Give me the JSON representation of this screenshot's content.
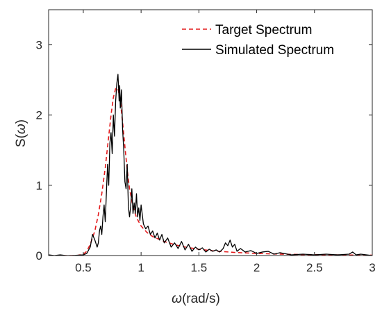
{
  "chart_data": {
    "type": "line",
    "xlabel_symbol": "ω",
    "xlabel_unit": "(rad/s)",
    "ylabel_prefix": "S(",
    "ylabel_symbol": "ω",
    "ylabel_suffix": ")",
    "xlim": [
      0.2,
      3.0
    ],
    "ylim": [
      0,
      3.5
    ],
    "xticks": [
      0.5,
      1,
      1.5,
      2,
      2.5,
      3
    ],
    "xtick_labels": [
      "0.5",
      "1",
      "1.5",
      "2",
      "2.5",
      "3"
    ],
    "yticks": [
      0,
      1,
      2,
      3
    ],
    "ytick_labels": [
      "0",
      "1",
      "2",
      "3"
    ],
    "grid": false,
    "legend_position": "top-right",
    "series": [
      {
        "name": "Target Spectrum",
        "color": "#e41a1c",
        "style": "dashed",
        "x": [
          0.2,
          0.4,
          0.45,
          0.5,
          0.53,
          0.56,
          0.6,
          0.63,
          0.66,
          0.69,
          0.72,
          0.74,
          0.76,
          0.78,
          0.8,
          0.82,
          0.84,
          0.86,
          0.88,
          0.9,
          0.93,
          0.96,
          1.0,
          1.05,
          1.1,
          1.2,
          1.3,
          1.4,
          1.5,
          1.6,
          1.8,
          2.0,
          2.2,
          2.4,
          2.6,
          2.8,
          3.0
        ],
        "y": [
          0,
          0,
          0.002,
          0.02,
          0.06,
          0.16,
          0.35,
          0.58,
          0.88,
          1.25,
          1.7,
          2.0,
          2.25,
          2.38,
          2.38,
          2.2,
          1.9,
          1.55,
          1.22,
          0.95,
          0.7,
          0.54,
          0.42,
          0.33,
          0.27,
          0.2,
          0.15,
          0.115,
          0.09,
          0.07,
          0.045,
          0.03,
          0.02,
          0.014,
          0.01,
          0.007,
          0.005
        ]
      },
      {
        "name": "Simulated Spectrum",
        "color": "#000000",
        "style": "solid",
        "x": [
          0.2,
          0.25,
          0.3,
          0.35,
          0.4,
          0.45,
          0.5,
          0.53,
          0.56,
          0.58,
          0.6,
          0.62,
          0.63,
          0.64,
          0.65,
          0.66,
          0.67,
          0.68,
          0.69,
          0.7,
          0.71,
          0.72,
          0.73,
          0.74,
          0.75,
          0.76,
          0.77,
          0.78,
          0.79,
          0.8,
          0.81,
          0.815,
          0.82,
          0.83,
          0.84,
          0.85,
          0.86,
          0.87,
          0.88,
          0.89,
          0.9,
          0.91,
          0.92,
          0.93,
          0.94,
          0.95,
          0.96,
          0.97,
          0.98,
          0.99,
          1.0,
          1.02,
          1.04,
          1.06,
          1.08,
          1.1,
          1.12,
          1.14,
          1.16,
          1.18,
          1.2,
          1.23,
          1.26,
          1.29,
          1.32,
          1.35,
          1.38,
          1.41,
          1.44,
          1.47,
          1.5,
          1.53,
          1.56,
          1.59,
          1.62,
          1.65,
          1.68,
          1.71,
          1.73,
          1.75,
          1.77,
          1.79,
          1.81,
          1.83,
          1.86,
          1.9,
          1.95,
          2.0,
          2.05,
          2.1,
          2.15,
          2.2,
          2.3,
          2.4,
          2.5,
          2.6,
          2.7,
          2.8,
          2.83,
          2.86,
          2.9,
          3.0
        ],
        "y": [
          0.01,
          0.0,
          0.01,
          0.0,
          0.0,
          0.005,
          0.01,
          0.03,
          0.12,
          0.3,
          0.22,
          0.12,
          0.18,
          0.35,
          0.42,
          0.3,
          0.55,
          0.72,
          0.48,
          0.9,
          1.3,
          1.0,
          1.6,
          1.75,
          1.45,
          2.0,
          1.7,
          2.2,
          2.45,
          2.58,
          2.2,
          2.42,
          2.1,
          2.36,
          1.8,
          1.5,
          1.05,
          0.95,
          1.3,
          0.7,
          0.55,
          0.7,
          0.95,
          0.6,
          0.75,
          0.6,
          0.88,
          0.55,
          0.68,
          0.5,
          0.72,
          0.45,
          0.38,
          0.42,
          0.3,
          0.35,
          0.25,
          0.32,
          0.22,
          0.3,
          0.18,
          0.25,
          0.12,
          0.18,
          0.1,
          0.2,
          0.08,
          0.16,
          0.06,
          0.12,
          0.08,
          0.11,
          0.05,
          0.09,
          0.06,
          0.08,
          0.05,
          0.1,
          0.18,
          0.14,
          0.22,
          0.12,
          0.16,
          0.06,
          0.1,
          0.05,
          0.07,
          0.03,
          0.05,
          0.06,
          0.02,
          0.04,
          0.01,
          0.02,
          0.01,
          0.02,
          0.01,
          0.02,
          0.05,
          0.01,
          0.02,
          0.0
        ]
      }
    ]
  }
}
